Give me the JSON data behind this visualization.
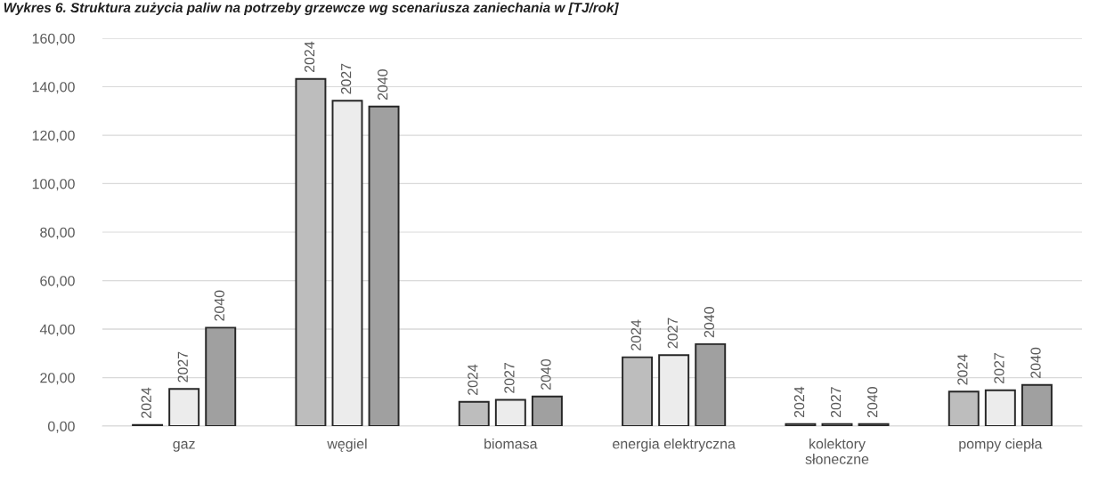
{
  "chart_data": {
    "type": "bar",
    "title": "Wykres 6. Struktura zużycia paliw na potrzeby grzewcze wg scenariusza zaniechania w [TJ/rok]",
    "categories": [
      "gaz",
      "węgiel",
      "biomasa",
      "energia elektryczna",
      "kolektory\nsłoneczne",
      "pompy ciepła"
    ],
    "series": [
      {
        "name": "2024",
        "color": "#bdbdbd",
        "values": [
          0.5,
          143.2,
          10.0,
          28.4,
          0.8,
          14.2
        ]
      },
      {
        "name": "2027",
        "color": "#ececec",
        "values": [
          15.3,
          134.2,
          10.8,
          29.3,
          0.8,
          14.8
        ]
      },
      {
        "name": "2040",
        "color": "#a0a0a0",
        "values": [
          40.6,
          131.8,
          12.2,
          33.8,
          0.8,
          17.0
        ]
      }
    ],
    "ylim": [
      0,
      160
    ],
    "yticks": [
      {
        "value": 0,
        "label": "0,00"
      },
      {
        "value": 20,
        "label": "20,00"
      },
      {
        "value": 40,
        "label": "40,00"
      },
      {
        "value": 60,
        "label": "60,00"
      },
      {
        "value": 80,
        "label": "80,00"
      },
      {
        "value": 100,
        "label": "100,00"
      },
      {
        "value": 120,
        "label": "120,00"
      },
      {
        "value": 140,
        "label": "140,00"
      },
      {
        "value": 160,
        "label": "160,00"
      }
    ],
    "grid": "y"
  }
}
